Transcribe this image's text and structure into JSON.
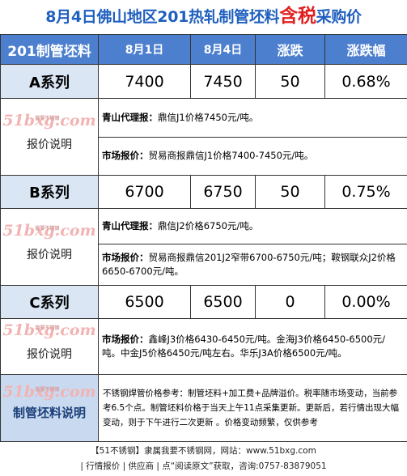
{
  "title": {
    "main": "8月4日佛山地区201热轧制管坯料",
    "highlight": "含税",
    "end": "采购价"
  },
  "header": {
    "product": "201制管坯料",
    "date1": "8月1日",
    "date2": "8月4日",
    "change": "涨跌",
    "change_pct": "涨跌幅"
  },
  "rows": [
    {
      "series": "A系列",
      "p1": "7400",
      "p2": "7450",
      "change": "50",
      "pct": "0.68%",
      "side_label": "报价说明",
      "note1_tag": "青山代理报：",
      "note1_text": "鼎信J1价格7450元/吨。",
      "note2_tag": "市场报价：",
      "note2_text": "贸易商报鼎信J1价格7400-7450元/吨。"
    },
    {
      "series": "B系列",
      "p1": "6700",
      "p2": "6750",
      "change": "50",
      "pct": "0.75%",
      "side_label": "报价说明",
      "note1_tag": "青山代理报：",
      "note1_text": "鼎信J2价格6750元/吨。",
      "note2_tag": "市场报价：",
      "note2_text": "贸易商报鼎信201J2窄带6700-6750元/吨；鞍钢联众J2价格6650-6700元/吨。"
    },
    {
      "series": "C系列",
      "p1": "6500",
      "p2": "6500",
      "change": "0",
      "pct": "0.00%",
      "side_label": "报价说明",
      "note1_tag": "市场报价：",
      "note1_text": "鑫峰J3价格6430-6450元/吨。金海J3价格6450-6500元/吨。中金J5价格6450元/吨左右。华乐J3A价格6500元/吨。"
    }
  ],
  "bottom": {
    "label": "制管坯料说明",
    "text": "不锈钢焊管价格参考：制管坯料+加工费+品牌溢价。税率随市场变动，当前参考6.5个点。制管坯料价格于当天上午11点采集更新。更新后，若行情出现大幅变动，则于下午进行二次更新 。价格变动频繁，仅供参考"
  },
  "logo": {
    "main": "51bxg.com",
    "sub": "我要不锈钢"
  },
  "footer": {
    "line1": "【51不锈钢】隶属我要不锈钢网，网站：www.51bxg.com",
    "line2": "| 行情报价 | 供应商 | 点“阅读原文”获取，咨询:0757-83879051"
  }
}
